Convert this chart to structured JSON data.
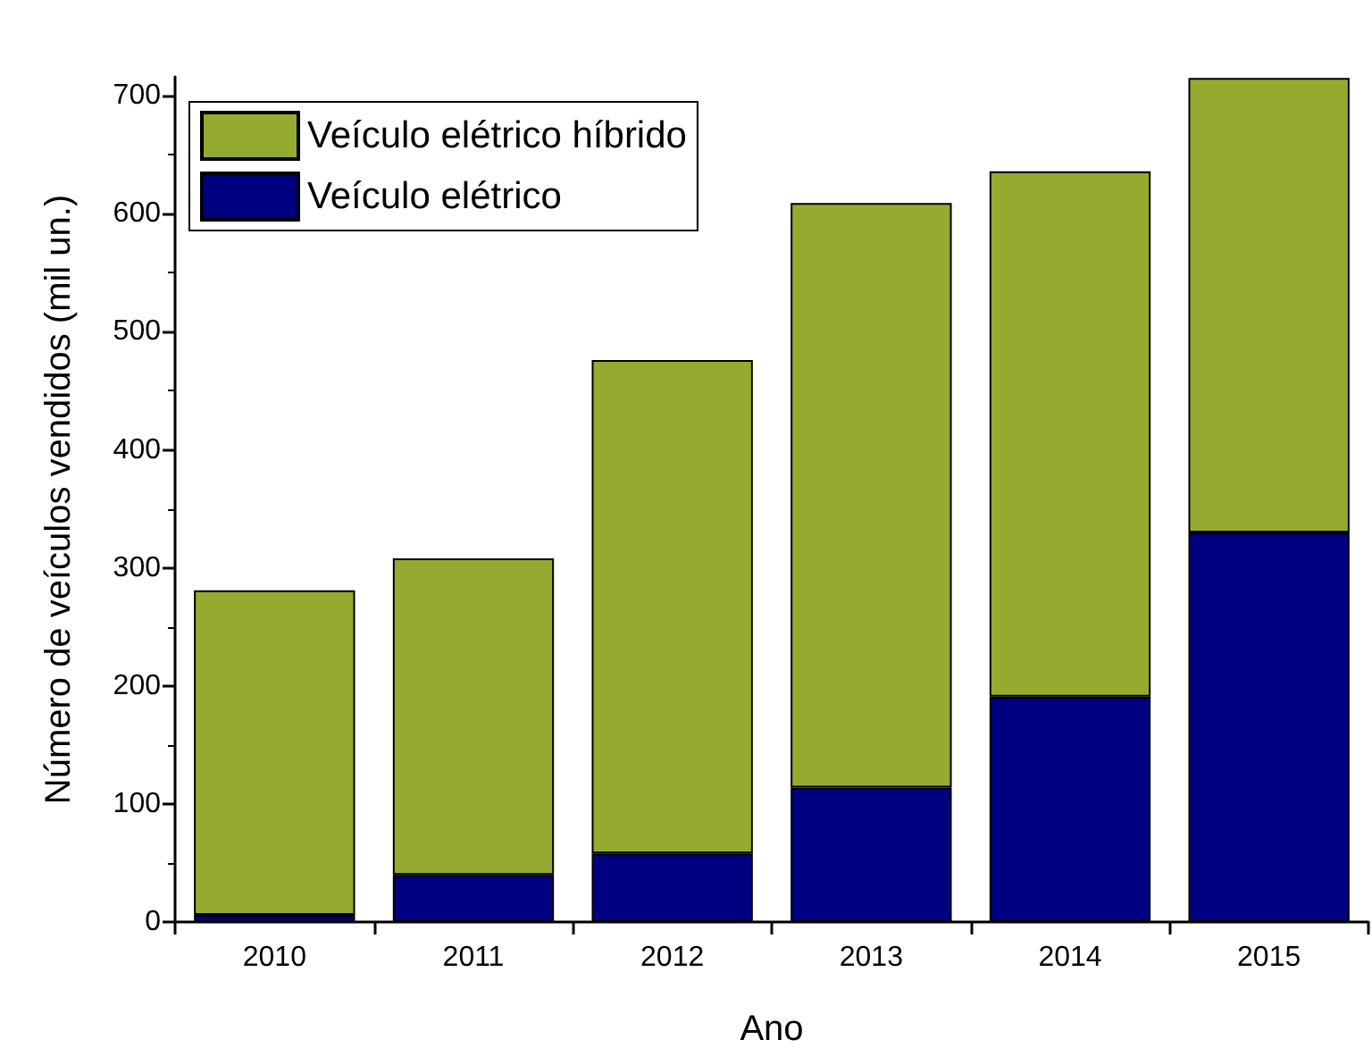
{
  "chart_data": {
    "type": "bar",
    "stacked": true,
    "xlabel": "Ano",
    "ylabel": "Número de veículos vendidos (mil un.)",
    "categories": [
      "2010",
      "2011",
      "2012",
      "2013",
      "2014",
      "2015"
    ],
    "series": [
      {
        "name": "Veículo elétrico",
        "color": "#000080",
        "values": [
          6,
          40,
          58,
          114,
          191,
          330
        ]
      },
      {
        "name": "Veículo elétrico híbrido",
        "color": "#95ab2f",
        "values": [
          275,
          268,
          418,
          495,
          445,
          385
        ]
      }
    ],
    "ylim": [
      0,
      716
    ],
    "yticks": [
      0,
      100,
      200,
      300,
      400,
      500,
      600,
      700
    ],
    "grid": false,
    "legend": "top left"
  }
}
